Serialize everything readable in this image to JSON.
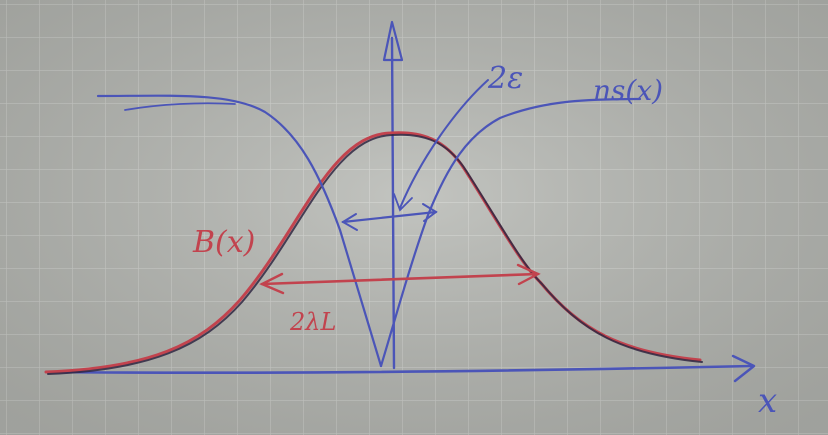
{
  "labels": {
    "epsilon_width": "2ε",
    "ns_curve": "ns(x)",
    "b_curve": "B(x)",
    "lambda_width": "2λL",
    "x_axis": "x"
  },
  "colors": {
    "paper": "#b7b9b4",
    "grid": "#c9cbc7",
    "blue_ink": "#4b55b8",
    "red_ink": "#c2434e",
    "dark_ink": "#2f2742"
  }
}
